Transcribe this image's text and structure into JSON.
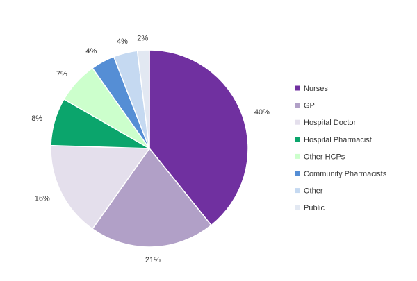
{
  "chart_data": {
    "type": "pie",
    "title": "",
    "legend_position": "right",
    "slices": [
      {
        "label": "Nurses",
        "value": 40,
        "display": "40%",
        "color": "#7030A0"
      },
      {
        "label": "GP",
        "value": 21,
        "display": "21%",
        "color": "#B1A0C7"
      },
      {
        "label": "Hospital Doctor",
        "value": 16,
        "display": "16%",
        "color": "#E4DFEC"
      },
      {
        "label": "Hospital Pharmacist",
        "value": 8,
        "display": "8%",
        "color": "#0BA56C"
      },
      {
        "label": "Other HCPs",
        "value": 7,
        "display": "7%",
        "color": "#CCFFCC"
      },
      {
        "label": "Community Pharmacists",
        "value": 4,
        "display": "4%",
        "color": "#558ED5"
      },
      {
        "label": "Other",
        "value": 4,
        "display": "4%",
        "color": "#C5D9F1"
      },
      {
        "label": "Public",
        "value": 2,
        "display": "2%",
        "color": "#E2E8F2"
      }
    ]
  }
}
